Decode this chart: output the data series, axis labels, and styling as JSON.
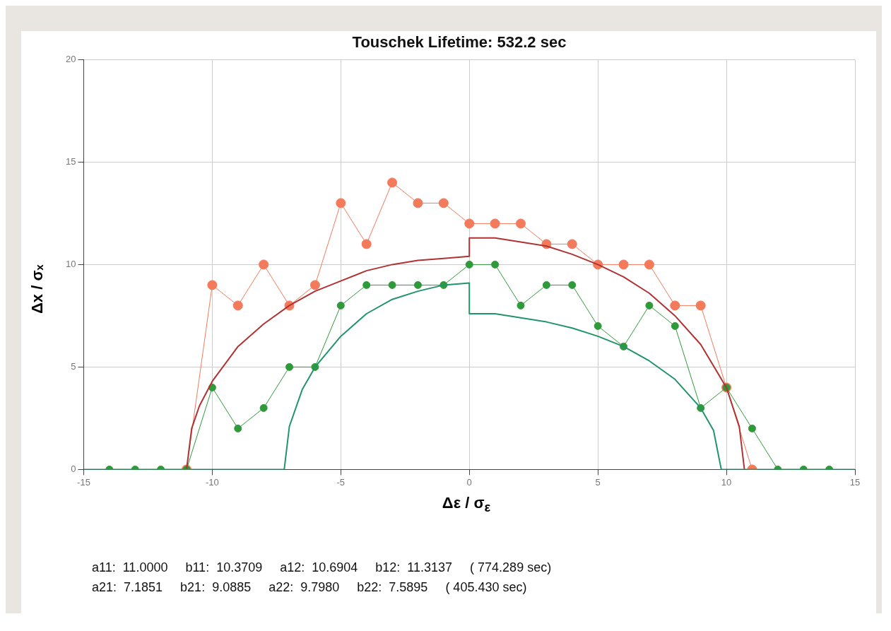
{
  "chart_data": {
    "type": "line",
    "title": "Touschek Lifetime: 532.2 sec",
    "xlabel": "Δε / σ$_{ε}$",
    "ylabel": "Δx / σₓ",
    "x": [
      -14,
      -13,
      -12,
      -11,
      -10,
      -9,
      -8,
      -7,
      -6,
      -5,
      -4,
      -3,
      -2,
      -1,
      0,
      1,
      2,
      3,
      4,
      5,
      6,
      7,
      8,
      9,
      10,
      11,
      12,
      13,
      14
    ],
    "series": [
      {
        "color": "#f47a5c",
        "marker": "circle",
        "values": [
          null,
          null,
          null,
          0,
          9,
          8,
          10,
          8,
          9,
          13,
          11,
          14,
          13,
          13,
          12,
          12,
          12,
          11,
          11,
          10,
          10,
          10,
          8,
          8,
          4,
          0,
          null,
          null,
          null
        ]
      },
      {
        "color": "#2f9a3a",
        "marker": "circle",
        "values": [
          0,
          0,
          0,
          0,
          4,
          2,
          3,
          5,
          5,
          8,
          9,
          9,
          9,
          9,
          10,
          10,
          8,
          9,
          9,
          7,
          6,
          8,
          7,
          3,
          4,
          2,
          0,
          0,
          0
        ]
      },
      {
        "color": "#b03232",
        "marker": "none",
        "x": [
          -11,
          -10.8,
          -10.5,
          -10,
          -9,
          -8,
          -7,
          -6,
          -5,
          -4,
          -3,
          -2,
          -1,
          0,
          0,
          1,
          2,
          3,
          4,
          5,
          6,
          7,
          8,
          9,
          10,
          10.5,
          10.7
        ],
        "values": [
          0,
          2.0,
          3.1,
          4.3,
          6.0,
          7.1,
          8.0,
          8.7,
          9.2,
          9.7,
          10.0,
          10.2,
          10.3,
          10.4,
          11.3,
          11.3,
          11.1,
          10.9,
          10.5,
          10.0,
          9.4,
          8.6,
          7.5,
          6.1,
          4.0,
          2.1,
          0
        ]
      },
      {
        "color": "#22946a",
        "marker": "none",
        "x": [
          -15,
          -7.2,
          -7,
          -6.5,
          -6,
          -5,
          -4,
          -3,
          -2,
          -1,
          0,
          0,
          1,
          2,
          3,
          4,
          5,
          6,
          7,
          8,
          9,
          9.5,
          9.8,
          15
        ],
        "values": [
          0,
          0,
          2.1,
          3.9,
          5.0,
          6.5,
          7.6,
          8.3,
          8.7,
          9.0,
          9.1,
          7.6,
          7.6,
          7.4,
          7.2,
          6.9,
          6.5,
          6.0,
          5.3,
          4.4,
          3.0,
          1.9,
          0,
          0
        ]
      }
    ],
    "xlim": [
      -15,
      15
    ],
    "xticks": [
      -15,
      -10,
      -5,
      0,
      5,
      10,
      15
    ],
    "ylim": [
      0,
      20
    ],
    "yticks": [
      0,
      5,
      10,
      15,
      20
    ],
    "grid": true,
    "legend": false,
    "annotations": [
      "a11:  11.0000     b11:  10.3709     a12:  10.6904     b12:  11.3137     ( 774.289 sec)",
      "a21:  7.1851     b21:  9.0885     a22:  9.7980     b22:  7.5895     ( 405.430 sec)"
    ]
  }
}
